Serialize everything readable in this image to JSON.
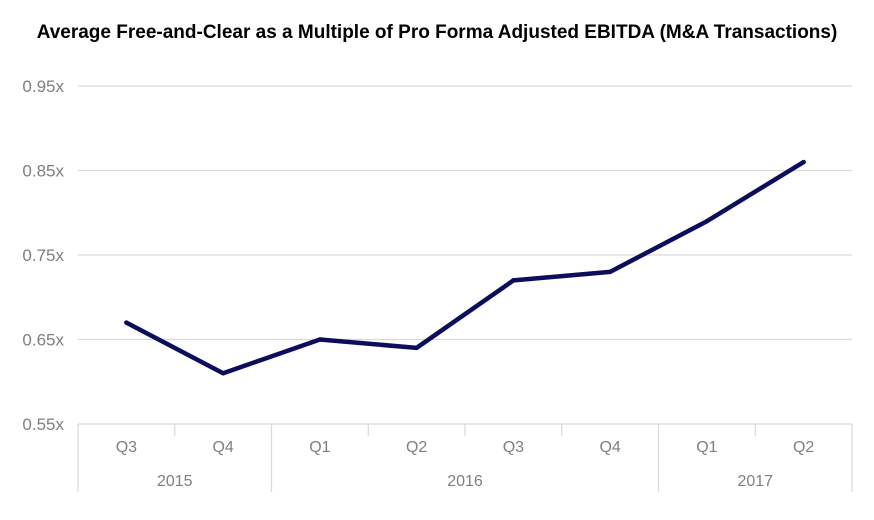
{
  "chart_data": {
    "type": "line",
    "title": "Average Free-and-Clear as a Multiple of Pro Forma Adjusted EBITDA (M&A Transactions)",
    "xlabel": "",
    "ylabel": "",
    "ylim": [
      0.55,
      0.95
    ],
    "yticks": [
      {
        "value": 0.95,
        "label": "0.95x"
      },
      {
        "value": 0.85,
        "label": "0.85x"
      },
      {
        "value": 0.75,
        "label": "0.75x"
      },
      {
        "value": 0.65,
        "label": "0.65x"
      },
      {
        "value": 0.55,
        "label": "0.55x"
      }
    ],
    "categories": [
      "Q3",
      "Q4",
      "Q1",
      "Q2",
      "Q3",
      "Q4",
      "Q1",
      "Q2"
    ],
    "groups": [
      {
        "label": "2015",
        "count": 2
      },
      {
        "label": "2016",
        "count": 4
      },
      {
        "label": "2017",
        "count": 2
      }
    ],
    "series": [
      {
        "values": [
          0.67,
          0.61,
          0.65,
          0.64,
          0.72,
          0.73,
          0.79,
          0.86
        ],
        "color": "#0d0d5e"
      }
    ],
    "grid": true,
    "legend": "none",
    "gridline_color": "#d9d9d9",
    "text_color": "#7f7f7f"
  }
}
